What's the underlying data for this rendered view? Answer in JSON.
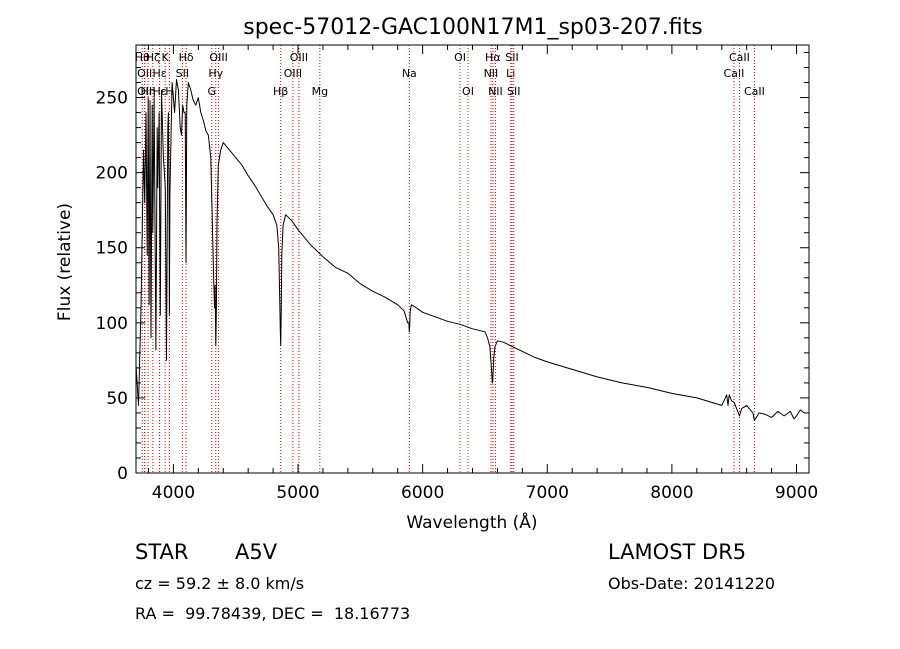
{
  "chart_data": {
    "type": "line",
    "title": "spec-57012-GAC100N17M1_sp03-207.fits",
    "xlabel": "Wavelength (Å)",
    "ylabel": "Flux (relative)",
    "xlim": [
      3700,
      9100
    ],
    "ylim": [
      0,
      285
    ],
    "x_ticks": [
      4000,
      5000,
      6000,
      7000,
      8000,
      9000
    ],
    "y_ticks": [
      0,
      50,
      100,
      150,
      200,
      250
    ],
    "grid": false,
    "line_color": "#000000",
    "marker_color": "#cc0000",
    "series": [
      {
        "x": [
          3700,
          3720,
          3740,
          3750,
          3760,
          3770,
          3780,
          3790,
          3798,
          3805,
          3812,
          3820,
          3830,
          3835,
          3845,
          3860,
          3870,
          3875,
          3885,
          3895,
          3905,
          3920,
          3935,
          3945,
          3955,
          3960,
          3965,
          3968,
          3972,
          3980,
          3990,
          4000,
          4010,
          4025,
          4040,
          4055,
          4065,
          4075,
          4085,
          4095,
          4101,
          4108,
          4120,
          4140,
          4160,
          4180,
          4200,
          4220,
          4240,
          4260,
          4280,
          4300,
          4320,
          4330,
          4335,
          4340,
          4345,
          4350,
          4360,
          4380,
          4400,
          4450,
          4500,
          4550,
          4600,
          4650,
          4700,
          4750,
          4800,
          4830,
          4845,
          4852,
          4858,
          4861,
          4864,
          4870,
          4880,
          4900,
          4950,
          5000,
          5100,
          5200,
          5300,
          5400,
          5500,
          5600,
          5700,
          5800,
          5850,
          5880,
          5890,
          5893,
          5896,
          5900,
          5910,
          5950,
          6000,
          6100,
          6200,
          6300,
          6400,
          6500,
          6520,
          6540,
          6550,
          6556,
          6560,
          6563,
          6566,
          6570,
          6580,
          6600,
          6650,
          6700,
          6800,
          6900,
          7000,
          7200,
          7400,
          7600,
          7800,
          8000,
          8200,
          8400,
          8440,
          8450,
          8460,
          8480,
          8500,
          8542,
          8560,
          8600,
          8650,
          8662,
          8700,
          8750,
          8800,
          8850,
          8900,
          8950,
          8980,
          9000,
          9030,
          9060
        ],
        "y": [
          72,
          45,
          110,
          160,
          215,
          180,
          240,
          145,
          250,
          112,
          248,
          90,
          245,
          160,
          250,
          82,
          230,
          190,
          240,
          105,
          255,
          210,
          190,
          75,
          230,
          240,
          190,
          105,
          185,
          220,
          260,
          250,
          240,
          262,
          255,
          230,
          225,
          245,
          240,
          240,
          140,
          245,
          260,
          255,
          248,
          245,
          250,
          240,
          235,
          228,
          225,
          210,
          140,
          110,
          125,
          85,
          110,
          165,
          205,
          215,
          220,
          215,
          210,
          205,
          198,
          192,
          185,
          178,
          172,
          165,
          150,
          120,
          95,
          85,
          100,
          145,
          165,
          172,
          168,
          162,
          152,
          144,
          137,
          133,
          126,
          121,
          117,
          112,
          108,
          100,
          100,
          94,
          98,
          108,
          112,
          110,
          107,
          104,
          101,
          99,
          96,
          94,
          90,
          84,
          72,
          65,
          60,
          62,
          68,
          76,
          84,
          88,
          87,
          85,
          81,
          77,
          74,
          69,
          64,
          60,
          57,
          53,
          50,
          45,
          52,
          45,
          52,
          48,
          47,
          38,
          43,
          45,
          40,
          35,
          40,
          39,
          37,
          41,
          38,
          41,
          36,
          38,
          42,
          40
        ]
      }
    ],
    "lines": [
      {
        "x": 3750,
        "label": "Hθ",
        "row": 1
      },
      {
        "x": 3770,
        "label": "OII",
        "row": 2
      },
      {
        "x": 3770,
        "label": "OII",
        "row": 3
      },
      {
        "x": 3797,
        "label": "Hη",
        "row": 3
      },
      {
        "x": 3835,
        "label": "Hζ",
        "row": 1
      },
      {
        "x": 3889,
        "label": "Hε",
        "row": 2
      },
      {
        "x": 3889,
        "label": "Hε",
        "row": 3
      },
      {
        "x": 3934,
        "label": "K",
        "row": 1
      },
      {
        "x": 3968,
        "label": "H",
        "row": 3
      },
      {
        "x": 4072,
        "label": "SII",
        "row": 2
      },
      {
        "x": 4102,
        "label": "Hδ",
        "row": 1
      },
      {
        "x": 4308,
        "label": "G",
        "row": 3
      },
      {
        "x": 4340,
        "label": "Hγ",
        "row": 2
      },
      {
        "x": 4363,
        "label": "OIII",
        "row": 1
      },
      {
        "x": 4861,
        "label": "Hβ",
        "row": 3
      },
      {
        "x": 4959,
        "label": "OIII",
        "row": 2
      },
      {
        "x": 5007,
        "label": "OIII",
        "row": 1
      },
      {
        "x": 5175,
        "label": "Mg",
        "row": 3
      },
      {
        "x": 5893,
        "label": "Na",
        "row": 2
      },
      {
        "x": 6300,
        "label": "OI",
        "row": 1
      },
      {
        "x": 6364,
        "label": "OI",
        "row": 3
      },
      {
        "x": 6548,
        "label": "NII",
        "row": 2
      },
      {
        "x": 6563,
        "label": "Hα",
        "row": 1
      },
      {
        "x": 6584,
        "label": "NII",
        "row": 3
      },
      {
        "x": 6707,
        "label": "Li",
        "row": 2
      },
      {
        "x": 6717,
        "label": "SII",
        "row": 1
      },
      {
        "x": 6731,
        "label": "SII",
        "row": 3
      },
      {
        "x": 8498,
        "label": "CaII",
        "row": 2
      },
      {
        "x": 8542,
        "label": "CaII",
        "row": 1
      },
      {
        "x": 8662,
        "label": "CaII",
        "row": 3
      }
    ]
  },
  "info": {
    "class": "STAR",
    "subclass": "A5V",
    "survey": "LAMOST DR5",
    "cz": "cz = 59.2 ± 8.0 km/s",
    "obs_date": "Obs-Date: 20141220",
    "coords": "RA =  99.78439, DEC =  18.16773"
  }
}
